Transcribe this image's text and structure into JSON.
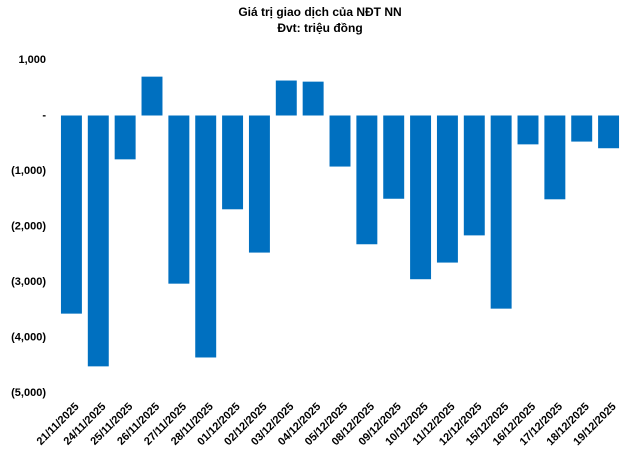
{
  "chart_data": {
    "type": "bar",
    "title": "Giá trị giao dịch của NĐT NN",
    "subtitle": "Đvt: triệu đồng",
    "categories": [
      "21/11/2025",
      "24/11/2025",
      "25/11/2025",
      "26/11/2025",
      "27/11/2025",
      "28/11/2025",
      "01/12/2025",
      "02/12/2025",
      "03/12/2025",
      "04/12/2025",
      "05/12/2025",
      "08/12/2025",
      "09/12/2025",
      "10/12/2025",
      "11/12/2025",
      "12/12/2025",
      "15/12/2025",
      "16/12/2025",
      "17/12/2025",
      "18/12/2025",
      "19/12/2025"
    ],
    "values": [
      -3570,
      -4520,
      -790,
      700,
      -3030,
      -4360,
      -1690,
      -2470,
      630,
      610,
      -920,
      -2320,
      -1500,
      -2950,
      -2650,
      -2160,
      -3480,
      -520,
      -1510,
      -470,
      -590
    ],
    "color": "#0070c0",
    "ylim": [
      -5000,
      1000
    ],
    "yticks": [
      {
        "value": 1000,
        "label": "1,000"
      },
      {
        "value": 0,
        "label": "-"
      },
      {
        "value": -1000,
        "label": "(1,000)"
      },
      {
        "value": -2000,
        "label": "(2,000)"
      },
      {
        "value": -3000,
        "label": "(3,000)"
      },
      {
        "value": -4000,
        "label": "(4,000)"
      },
      {
        "value": -5000,
        "label": "(5,000)"
      }
    ],
    "grid": false
  }
}
